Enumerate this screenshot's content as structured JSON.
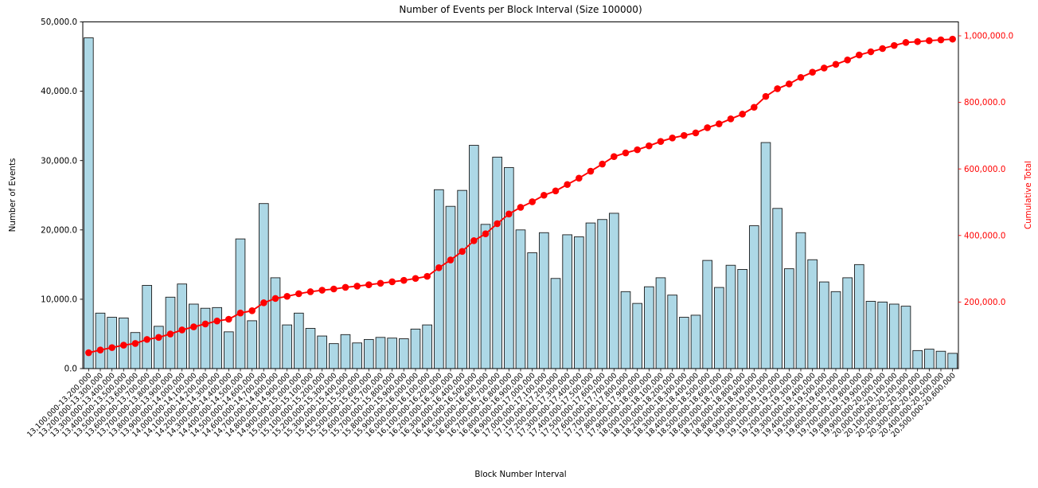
{
  "figure": {
    "title": "Number of Events per Block Interval (Size 100000)",
    "x_axis": {
      "label": "Block Number Interval"
    },
    "y_axis_left": {
      "label": "Number of Events",
      "tick_values": [
        0,
        10000,
        20000,
        30000,
        40000,
        50000
      ],
      "tick_labels": [
        "0.0",
        "10,000.0",
        "20,000.0",
        "30,000.0",
        "40,000.0",
        "50,000.0"
      ]
    },
    "y_axis_right": {
      "label": "Cumulative Total",
      "tick_values": [
        200000,
        400000,
        600000,
        800000,
        1000000
      ],
      "tick_labels": [
        "200,000.0",
        "400,000.0",
        "600,000.0",
        "800,000.0",
        "1,000,000.0"
      ]
    }
  },
  "colors": {
    "bar_fill": "#ADD8E6",
    "bar_edge": "#1c1c1c",
    "line": "#ff0000",
    "right_axis_text": "#ff0000",
    "axis_text": "#000000",
    "spine": "#000000"
  },
  "chart_data": {
    "type": "bar",
    "title": "Number of Events per Block Interval (Size 100000)",
    "xlabel": "Block Number Interval",
    "ylabel": "Number of Events",
    "ylabel_right": "Cumulative Total",
    "ylim_left": [
      0,
      50000
    ],
    "ylim_right": [
      0,
      1041000
    ],
    "grid": false,
    "legend_position": "none",
    "categories": [
      "13,100,000-13,200,000",
      "13,200,000-13,300,000",
      "13,300,000-13,400,000",
      "13,400,000-13,500,000",
      "13,500,000-13,600,000",
      "13,600,000-13,700,000",
      "13,700,000-13,800,000",
      "13,800,000-13,900,000",
      "13,900,000-14,000,000",
      "14,000,000-14,100,000",
      "14,100,000-14,200,000",
      "14,200,000-14,300,000",
      "14,300,000-14,400,000",
      "14,400,000-14,500,000",
      "14,500,000-14,600,000",
      "14,600,000-14,700,000",
      "14,700,000-14,800,000",
      "14,800,000-14,900,000",
      "14,900,000-15,000,000",
      "15,000,000-15,100,000",
      "15,100,000-15,200,000",
      "15,200,000-15,300,000",
      "15,300,000-15,400,000",
      "15,400,000-15,500,000",
      "15,500,000-15,600,000",
      "15,600,000-15,700,000",
      "15,700,000-15,800,000",
      "15,800,000-15,900,000",
      "15,900,000-16,000,000",
      "16,000,000-16,100,000",
      "16,100,000-16,200,000",
      "16,200,000-16,300,000",
      "16,300,000-16,400,000",
      "16,400,000-16,500,000",
      "16,500,000-16,600,000",
      "16,600,000-16,700,000",
      "16,700,000-16,800,000",
      "16,800,000-16,900,000",
      "16,900,000-17,000,000",
      "17,000,000-17,100,000",
      "17,100,000-17,200,000",
      "17,200,000-17,300,000",
      "17,300,000-17,400,000",
      "17,400,000-17,500,000",
      "17,500,000-17,600,000",
      "17,600,000-17,700,000",
      "17,700,000-17,800,000",
      "17,800,000-17,900,000",
      "17,900,000-18,000,000",
      "18,000,000-18,100,000",
      "18,100,000-18,200,000",
      "18,200,000-18,300,000",
      "18,300,000-18,400,000",
      "18,400,000-18,500,000",
      "18,500,000-18,600,000",
      "18,600,000-18,700,000",
      "18,700,000-18,800,000",
      "18,800,000-18,900,000",
      "18,900,000-19,000,000",
      "19,000,000-19,100,000",
      "19,100,000-19,200,000",
      "19,200,000-19,300,000",
      "19,300,000-19,400,000",
      "19,400,000-19,500,000",
      "19,500,000-19,600,000",
      "19,600,000-19,700,000",
      "19,700,000-19,800,000",
      "19,800,000-19,900,000",
      "19,900,000-20,000,000",
      "20,000,000-20,100,000",
      "20,100,000-20,200,000",
      "20,200,000-20,300,000",
      "20,300,000-20,400,000",
      "20,400,000-20,500,000",
      "20,500,000-20,600,000"
    ],
    "series": [
      {
        "name": "Number of Events",
        "type": "bar",
        "axis": "left",
        "color": "#ADD8E6",
        "values": [
          47700,
          8000,
          7400,
          7300,
          5200,
          12000,
          6100,
          10300,
          12200,
          9300,
          8700,
          8800,
          5300,
          18700,
          6900,
          23800,
          13100,
          6300,
          8000,
          5800,
          4700,
          3600,
          4900,
          3700,
          4200,
          4500,
          4400,
          4300,
          5700,
          6300,
          25800,
          23400,
          25700,
          32200,
          20800,
          30500,
          29000,
          20000,
          16700,
          19600,
          13000,
          19300,
          19000,
          21000,
          21500,
          22400,
          11100,
          9400,
          11800,
          13100,
          10600,
          7400,
          7700,
          15600,
          11700,
          14900,
          14300,
          20600,
          32600,
          23100,
          14400,
          19600,
          15700,
          12500,
          11100,
          13100,
          15000,
          9700,
          9600,
          9300,
          9000,
          2600,
          2800,
          2500,
          2200
        ]
      },
      {
        "name": "Cumulative Total",
        "type": "line",
        "axis": "right",
        "color": "#ff0000",
        "values": [
          47700,
          55700,
          63100,
          70400,
          75600,
          87600,
          93700,
          104000,
          116200,
          125500,
          134200,
          143000,
          148300,
          167000,
          173900,
          197700,
          210800,
          217100,
          225100,
          230900,
          235600,
          239200,
          244100,
          247800,
          252000,
          256500,
          260900,
          265200,
          270900,
          277200,
          303000,
          326400,
          352100,
          384300,
          405100,
          435600,
          464600,
          484600,
          501300,
          520900,
          533900,
          553200,
          572200,
          593200,
          614700,
          637100,
          648200,
          657600,
          669400,
          682500,
          693100,
          700500,
          708200,
          723800,
          735500,
          750400,
          764700,
          785300,
          817900,
          841000,
          855400,
          875000,
          890700,
          903200,
          914300,
          927400,
          942400,
          952100,
          961700,
          971000,
          980000,
          982600,
          985400,
          987900,
          990100
        ]
      }
    ]
  }
}
